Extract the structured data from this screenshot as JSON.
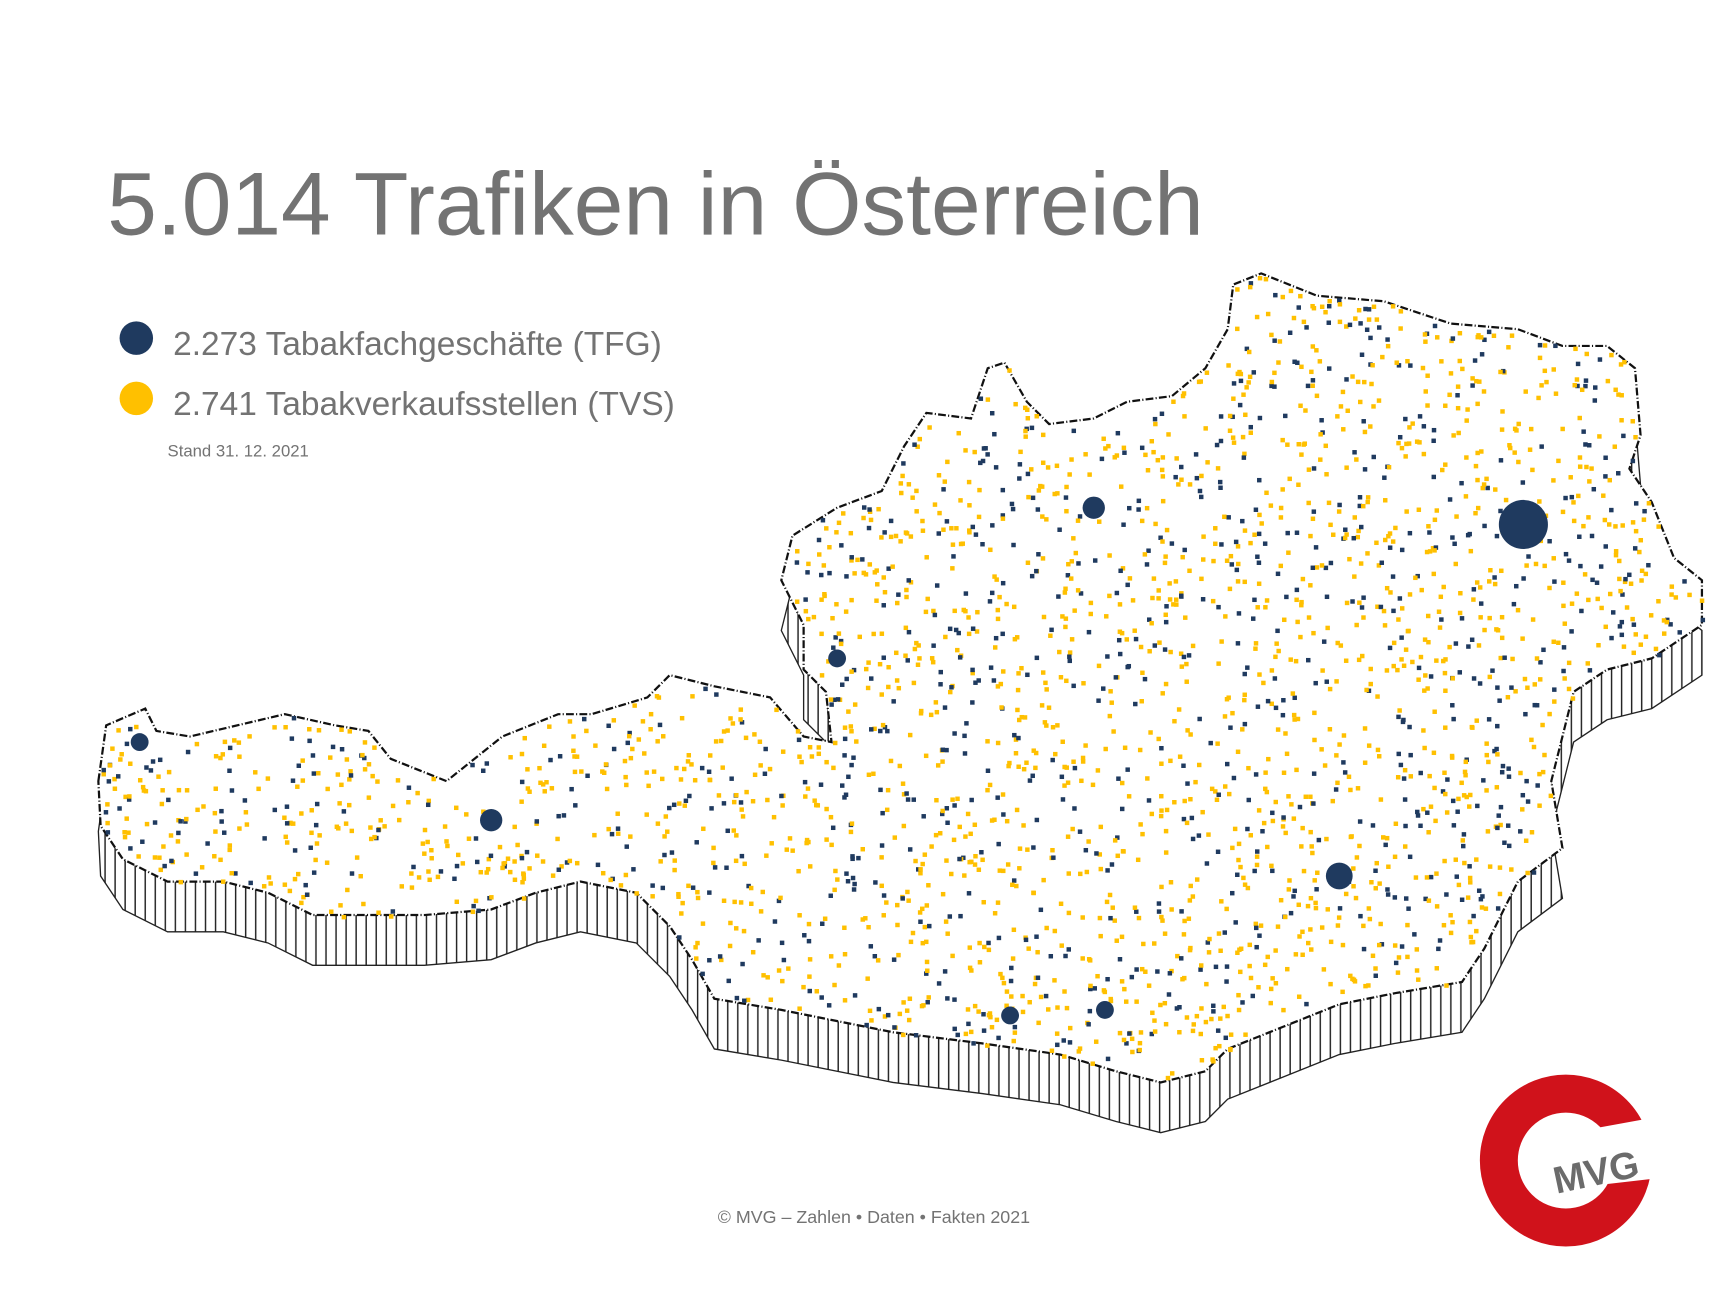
{
  "title": "5.014 Trafiken in Österreich",
  "legend": [
    {
      "label": "2.273 Tabakfachgeschäfte (TFG)",
      "color": "#1f3a5f"
    },
    {
      "label": "2.741 Tabakverkaufsstellen (TVS)",
      "color": "#ffc000"
    }
  ],
  "date": "Stand 31. 12. 2021",
  "footer": "© MVG – Zahlen • Daten • Fakten 2021",
  "logo": "MVG"
}
